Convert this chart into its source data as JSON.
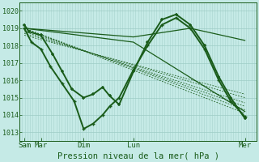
{
  "xlabel": "Pression niveau de la mer( hPa )",
  "xtick_labels": [
    "Sam",
    "Mar",
    "Dim",
    "Lun",
    "Mer"
  ],
  "xtick_positions": [
    0.02,
    0.09,
    0.27,
    0.48,
    0.95
  ],
  "ylim": [
    1012.5,
    1020.5
  ],
  "ytick_vals": [
    1013,
    1014,
    1015,
    1016,
    1017,
    1018,
    1019,
    1020
  ],
  "bg_color": "#c5eae6",
  "grid_color_v": "#a8d4ce",
  "grid_color_h": "#9eccc6",
  "line_color": "#1a5c1a",
  "num_vlines": 90,
  "series": [
    {
      "x": [
        0.02,
        0.95
      ],
      "y": [
        1019.0,
        1014.1
      ],
      "style": "dashed"
    },
    {
      "x": [
        0.02,
        0.95
      ],
      "y": [
        1019.0,
        1014.3
      ],
      "style": "dashed"
    },
    {
      "x": [
        0.02,
        0.95
      ],
      "y": [
        1018.9,
        1014.5
      ],
      "style": "dashed"
    },
    {
      "x": [
        0.02,
        0.95
      ],
      "y": [
        1018.8,
        1014.7
      ],
      "style": "dashed"
    },
    {
      "x": [
        0.02,
        0.95
      ],
      "y": [
        1018.7,
        1015.0
      ],
      "style": "dashed"
    },
    {
      "x": [
        0.02,
        0.95
      ],
      "y": [
        1018.6,
        1015.2
      ],
      "style": "dashed"
    },
    {
      "x": [
        0.02,
        0.48,
        0.95
      ],
      "y": [
        1019.0,
        1018.2,
        1014.2
      ],
      "style": "solid_thin"
    },
    {
      "x": [
        0.02,
        0.48,
        0.72,
        0.95
      ],
      "y": [
        1019.0,
        1018.5,
        1019.0,
        1018.3
      ],
      "style": "solid_thin"
    },
    {
      "x": [
        0.02,
        0.04,
        0.09,
        0.14,
        0.18,
        0.22,
        0.27,
        0.31,
        0.35,
        0.38,
        0.42,
        0.48,
        0.54,
        0.6,
        0.66,
        0.72,
        0.78,
        0.84,
        0.89,
        0.95
      ],
      "y": [
        1019.2,
        1018.8,
        1018.6,
        1017.5,
        1016.5,
        1015.5,
        1015.0,
        1015.2,
        1015.6,
        1015.1,
        1014.6,
        1016.5,
        1018.2,
        1019.5,
        1019.8,
        1019.2,
        1018.0,
        1016.2,
        1015.0,
        1013.8
      ],
      "style": "solid_thick_marker"
    },
    {
      "x": [
        0.02,
        0.05,
        0.09,
        0.13,
        0.18,
        0.23,
        0.27,
        0.31,
        0.35,
        0.38,
        0.42,
        0.48,
        0.54,
        0.6,
        0.66,
        0.72,
        0.78,
        0.84,
        0.89,
        0.95
      ],
      "y": [
        1019.0,
        1018.2,
        1017.8,
        1016.8,
        1015.8,
        1014.8,
        1013.2,
        1013.5,
        1014.0,
        1014.5,
        1015.0,
        1016.6,
        1018.0,
        1019.2,
        1019.6,
        1019.0,
        1017.8,
        1016.0,
        1014.8,
        1013.9
      ],
      "style": "solid_medium_marker"
    }
  ]
}
